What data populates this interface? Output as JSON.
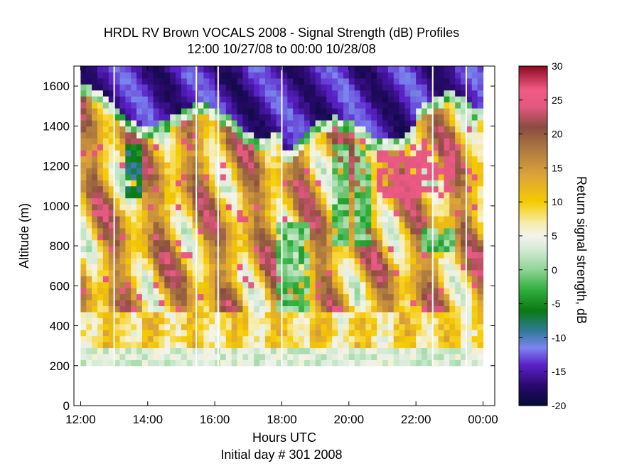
{
  "chart_data": {
    "type": "heatmap",
    "title": "HRDL RV Brown VOCALS 2008 - Signal Strength (dB) Profiles",
    "subtitle": "12:00 10/27/08 to 00:00 10/28/08",
    "xlabel": "Hours UTC",
    "xlabel2": "Initial day # 301  2008",
    "ylabel": "Altitude (m)",
    "colorbar_label": "Return signal strength, dB",
    "x_ticks": [
      "12:00",
      "14:00",
      "16:00",
      "18:00",
      "20:00",
      "22:00",
      "00:00"
    ],
    "x_range_hours": [
      11.8,
      24.35
    ],
    "y_ticks": [
      0,
      200,
      400,
      600,
      800,
      1000,
      1200,
      1400,
      1600
    ],
    "ylim": [
      0,
      1700
    ],
    "colorbar_ticks": [
      -20,
      -15,
      -10,
      -5,
      0,
      5,
      10,
      15,
      20,
      25,
      30
    ],
    "color_range": [
      -20,
      30
    ],
    "data_x_range_hours": [
      12.0,
      24.0
    ],
    "data_y_range": [
      200,
      1700
    ],
    "gaps_hours": [
      13.0,
      15.45,
      16.1,
      18.0,
      22.5,
      23.5
    ],
    "colorscale": [
      {
        "v": -20,
        "color": "#050a35"
      },
      {
        "v": -17,
        "color": "#2a0a6e"
      },
      {
        "v": -14,
        "color": "#5a22c8"
      },
      {
        "v": -11.5,
        "color": "#7c84ee"
      },
      {
        "v": -9,
        "color": "#2f7a9a"
      },
      {
        "v": -6,
        "color": "#0a7a12"
      },
      {
        "v": -3,
        "color": "#2fae3c"
      },
      {
        "v": 0,
        "color": "#8fd495"
      },
      {
        "v": 3,
        "color": "#d5ebd6"
      },
      {
        "v": 5,
        "color": "#f3f3ec"
      },
      {
        "v": 7,
        "color": "#f7eba7"
      },
      {
        "v": 10,
        "color": "#f5cb00"
      },
      {
        "v": 14,
        "color": "#dca23a"
      },
      {
        "v": 18,
        "color": "#a9763f"
      },
      {
        "v": 21,
        "color": "#8a4c41"
      },
      {
        "v": 24,
        "color": "#e2587f"
      },
      {
        "v": 26.5,
        "color": "#f05b86"
      },
      {
        "v": 30,
        "color": "#8b0a1e"
      }
    ]
  }
}
